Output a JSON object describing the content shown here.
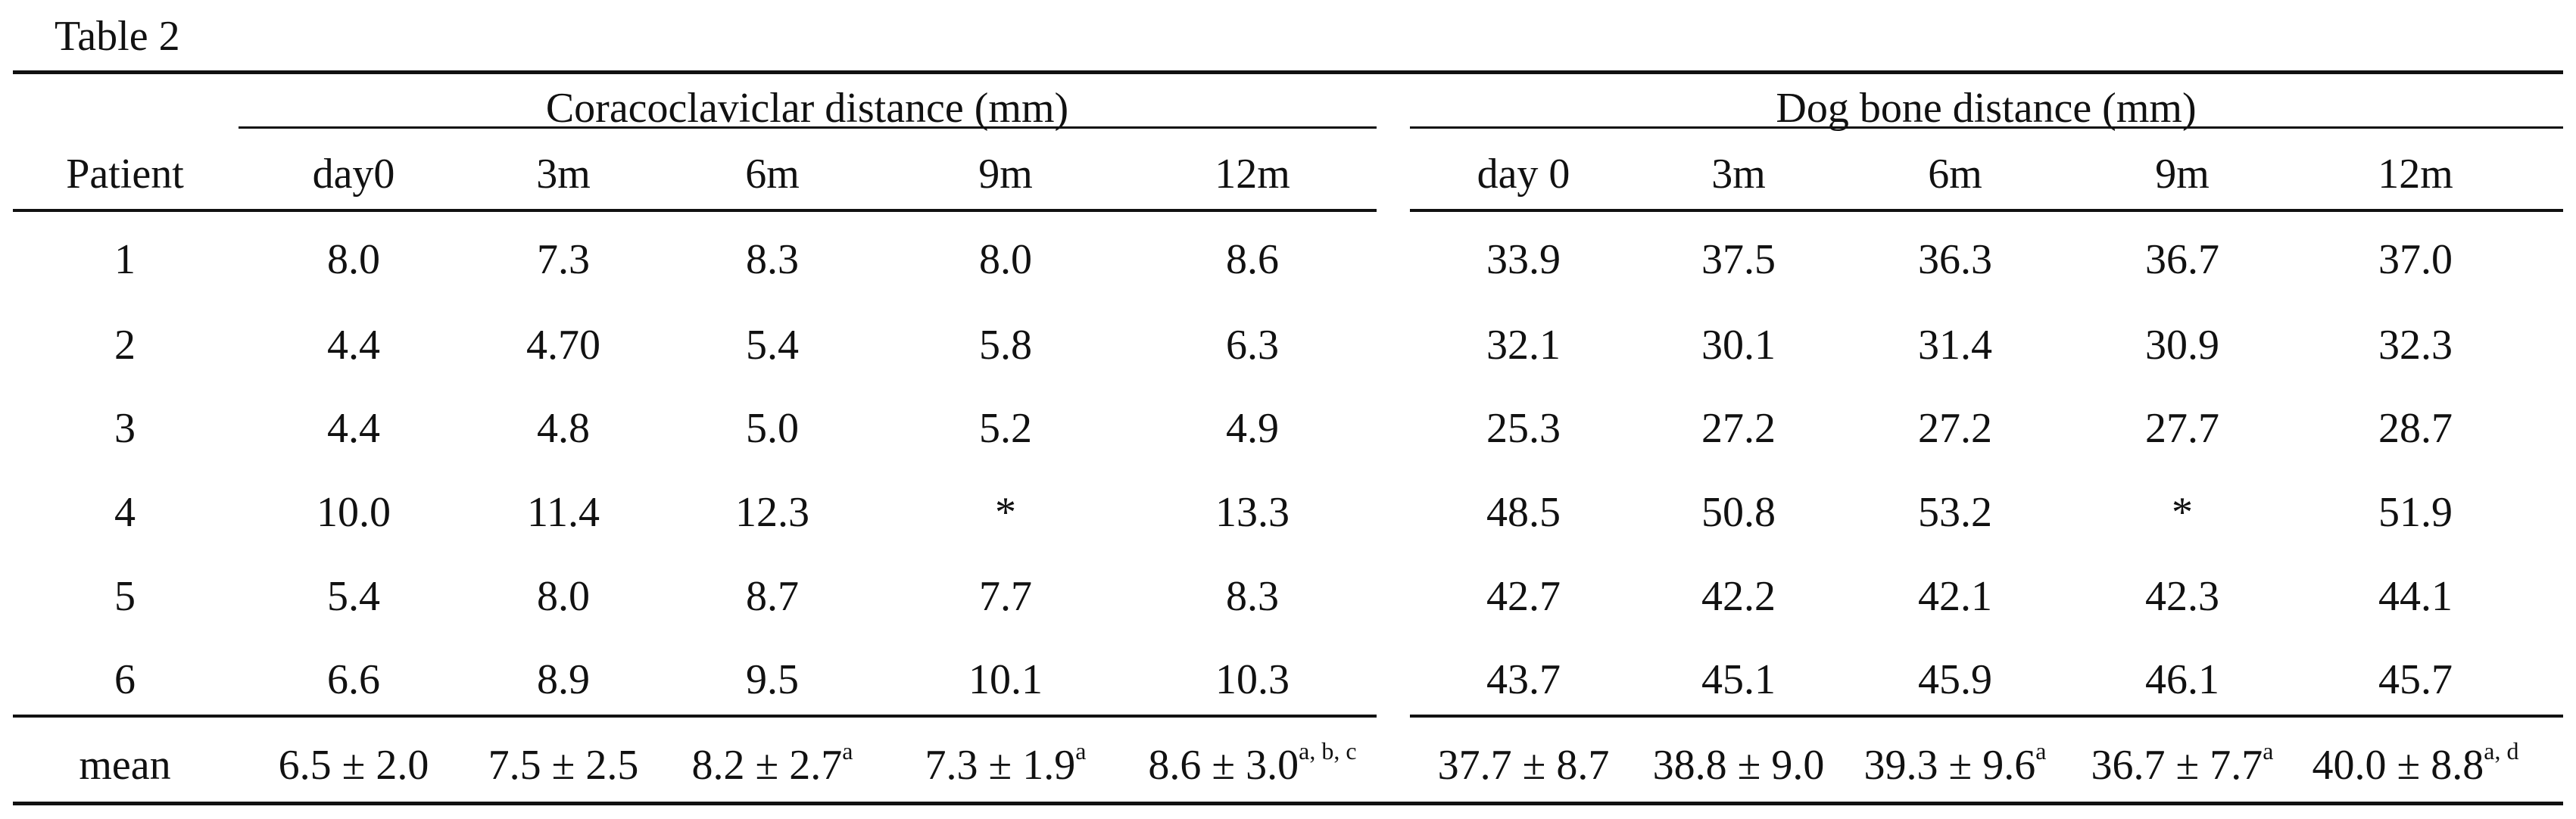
{
  "title": "Table 2",
  "table": {
    "groups": [
      "Coracoclaviclar distance (mm)",
      "Dog bone distance (mm)"
    ],
    "columns": [
      "Patient",
      "day0",
      "3m",
      "6m",
      "9m",
      "12m",
      "day 0",
      "3m",
      "6m",
      "9m",
      "12m"
    ],
    "rows": [
      [
        "1",
        "8.0",
        "7.3",
        "8.3",
        "8.0",
        "8.6",
        "33.9",
        "37.5",
        "36.3",
        "36.7",
        "37.0"
      ],
      [
        "2",
        "4.4",
        "4.70",
        "5.4",
        "5.8",
        "6.3",
        "32.1",
        "30.1",
        "31.4",
        "30.9",
        "32.3"
      ],
      [
        "3",
        "4.4",
        "4.8",
        "5.0",
        "5.2",
        "4.9",
        "25.3",
        "27.2",
        "27.2",
        "27.7",
        "28.7"
      ],
      [
        "4",
        "10.0",
        "11.4",
        "12.3",
        "*",
        "13.3",
        "48.5",
        "50.8",
        "53.2",
        "*",
        "51.9"
      ],
      [
        "5",
        "5.4",
        "8.0",
        "8.7",
        "7.7",
        "8.3",
        "42.7",
        "42.2",
        "42.1",
        "42.3",
        "44.1"
      ],
      [
        "6",
        "6.6",
        "8.9",
        "9.5",
        "10.1",
        "10.3",
        "43.7",
        "45.1",
        "45.9",
        "46.1",
        "45.7"
      ]
    ],
    "mean": {
      "label": "mean",
      "cells": [
        {
          "text": "6.5 ± 2.0"
        },
        {
          "text": "7.5 ± 2.5"
        },
        {
          "text": "8.2 ± 2.7",
          "sup": "a"
        },
        {
          "text": "7.3 ± 1.9",
          "sup": "a"
        },
        {
          "text": "8.6 ± 3.0",
          "sup": "a, b, c"
        },
        {
          "text": "37.7 ± 8.7"
        },
        {
          "text": "38.8 ± 9.0"
        },
        {
          "text": "39.3 ± 9.6",
          "sup": "a"
        },
        {
          "text": "36.7 ± 7.7",
          "sup": "a"
        },
        {
          "text": "40.0 ± 8.8",
          "sup": "a, d"
        }
      ]
    }
  }
}
